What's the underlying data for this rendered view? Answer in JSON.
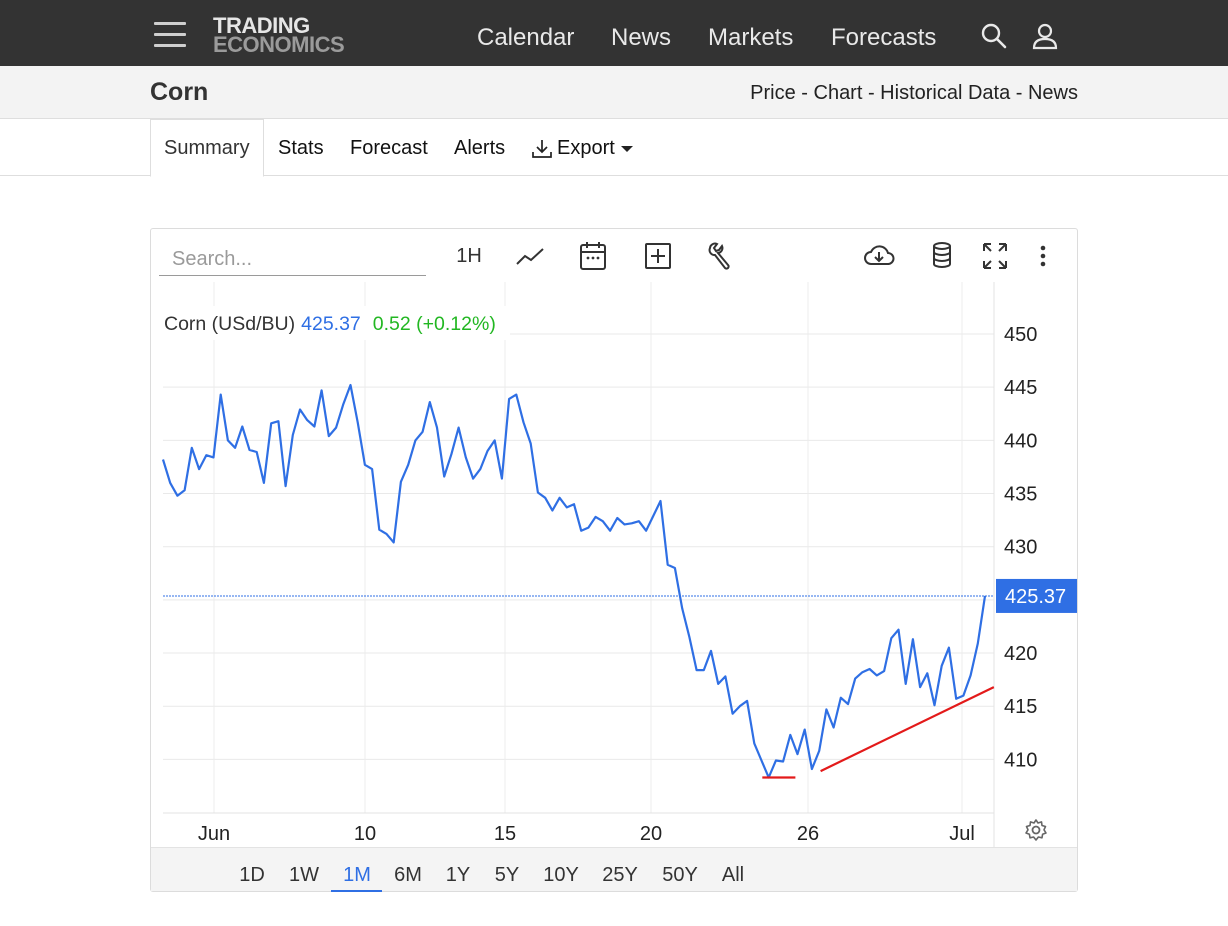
{
  "header": {
    "logo_line1": "TRADING",
    "logo_line2": "ECONOMICS",
    "nav": [
      "Calendar",
      "News",
      "Markets",
      "Forecasts"
    ]
  },
  "page": {
    "title": "Corn",
    "breadcrumb": "Price - Chart - Historical Data - News"
  },
  "tabs": {
    "summary": "Summary",
    "stats": "Stats",
    "forecast": "Forecast",
    "alerts": "Alerts",
    "export": "Export"
  },
  "toolbar": {
    "search_placeholder": "Search...",
    "interval": "1H",
    "icons": [
      "line-chart-icon",
      "calendar-icon",
      "add-icon",
      "wrench-icon",
      "cloud-download-icon",
      "database-icon",
      "fullscreen-icon",
      "more-icon"
    ]
  },
  "ranges": {
    "items": [
      "1D",
      "1W",
      "1M",
      "6M",
      "1Y",
      "5Y",
      "10Y",
      "25Y",
      "50Y",
      "All"
    ],
    "selected": "1M"
  },
  "colors": {
    "line": "#2f6fe4",
    "change": "#22b722",
    "trendline": "#e31a1a",
    "topbar": "#333333"
  },
  "chart_data": {
    "type": "line",
    "legend": {
      "name": "Corn (USd/BU)",
      "last": "425.37",
      "change": "0.52 (+0.12%)"
    },
    "x_ticks": [
      "Jun",
      "10",
      "15",
      "20",
      "26",
      "Jul"
    ],
    "y_ticks": [
      450,
      445,
      440,
      435,
      430,
      425,
      420,
      415,
      410
    ],
    "ylim": [
      405,
      452
    ],
    "last_value": 425.37,
    "last_label": "425.37",
    "grid": true,
    "series": [
      {
        "values": [
          438.2,
          436.0,
          434.8,
          435.3,
          439.3,
          437.3,
          438.6,
          438.4,
          444.3,
          440.0,
          439.3,
          441.3,
          439.1,
          438.9,
          436.0,
          441.6,
          441.8,
          435.7,
          440.5,
          442.9,
          441.9,
          441.3,
          444.7,
          440.4,
          441.2,
          443.4,
          445.2,
          441.7,
          437.7,
          437.3,
          431.6,
          431.2,
          430.4,
          436.1,
          437.7,
          440.0,
          440.8,
          443.6,
          441.2,
          436.6,
          438.7,
          441.2,
          438.4,
          436.4,
          437.3,
          439.0,
          440.0,
          436.4,
          443.9,
          444.3,
          441.7,
          439.7,
          435.1,
          434.6,
          433.4,
          434.6,
          433.7,
          434.0,
          431.5,
          431.8,
          432.8,
          432.4,
          431.5,
          432.7,
          432.1,
          432.2,
          432.4,
          431.5,
          432.9,
          434.3,
          428.3,
          428.0,
          424.2,
          421.5,
          418.4,
          418.4,
          420.2,
          417.1,
          417.8,
          414.3,
          415.0,
          415.5,
          411.5,
          409.9,
          408.3,
          409.9,
          409.8,
          412.3,
          410.5,
          412.8,
          409.1,
          410.8,
          414.7,
          413.0,
          415.8,
          415.2,
          417.6,
          418.2,
          418.5,
          417.9,
          418.3,
          421.4,
          422.2,
          417.1,
          421.3,
          416.8,
          418.1,
          415.1,
          418.8,
          420.5,
          415.7,
          416.0,
          417.9,
          420.9,
          425.37
        ],
        "start_day": 1,
        "end_day": 32
      }
    ],
    "annotations": [
      {
        "type": "hline-segment",
        "from_day": 24.55,
        "to_day": 25.6,
        "value": 408.3
      },
      {
        "type": "trendline",
        "from_day": 26.4,
        "from_value": 408.9,
        "to_day": 31.9,
        "to_value": 416.8
      }
    ]
  }
}
